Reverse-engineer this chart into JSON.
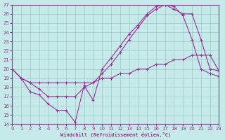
{
  "xlabel": "Windchill (Refroidissement éolien,°C)",
  "xlim": [
    0,
    23
  ],
  "ylim": [
    14,
    27
  ],
  "xticks": [
    0,
    1,
    2,
    3,
    4,
    5,
    6,
    7,
    8,
    9,
    10,
    11,
    12,
    13,
    14,
    15,
    16,
    17,
    18,
    19,
    20,
    21,
    22,
    23
  ],
  "yticks": [
    14,
    15,
    16,
    17,
    18,
    19,
    20,
    21,
    22,
    23,
    24,
    25,
    26,
    27
  ],
  "background_color": "#c6eaea",
  "grid_color": "#a0c8c8",
  "line_color": "#993399",
  "line1_x": [
    0,
    1,
    2,
    3,
    4,
    5,
    6,
    7,
    8,
    9,
    10,
    11,
    12,
    13,
    14,
    15,
    16,
    17,
    18,
    19,
    20,
    21,
    22,
    23
  ],
  "line1_y": [
    20.0,
    19.0,
    17.5,
    17.2,
    16.2,
    15.5,
    15.5,
    14.2,
    18.2,
    16.6,
    20.0,
    21.2,
    22.5,
    23.8,
    24.8,
    26.0,
    26.8,
    27.0,
    26.8,
    25.8,
    23.2,
    20.0,
    19.5,
    19.2
  ],
  "line2_x": [
    0,
    1,
    2,
    3,
    4,
    5,
    6,
    7,
    8,
    9,
    10,
    11,
    12,
    13,
    14,
    15,
    16,
    17,
    18,
    19,
    20,
    21,
    22,
    23
  ],
  "line2_y": [
    20.0,
    19.0,
    18.5,
    17.8,
    17.0,
    17.0,
    17.0,
    17.0,
    18.0,
    18.5,
    19.5,
    20.5,
    21.8,
    23.2,
    24.5,
    25.8,
    26.5,
    27.0,
    26.5,
    26.0,
    26.0,
    23.2,
    20.0,
    19.8
  ],
  "line3_x": [
    0,
    1,
    2,
    3,
    4,
    5,
    6,
    7,
    8,
    9,
    10,
    11,
    12,
    13,
    14,
    15,
    16,
    17,
    18,
    19,
    20,
    21,
    22,
    23
  ],
  "line3_y": [
    20.0,
    19.0,
    18.5,
    18.5,
    18.5,
    18.5,
    18.5,
    18.5,
    18.5,
    18.5,
    19.0,
    19.0,
    19.5,
    19.5,
    20.0,
    20.0,
    20.5,
    20.5,
    21.0,
    21.0,
    21.5,
    21.5,
    21.5,
    19.8
  ]
}
